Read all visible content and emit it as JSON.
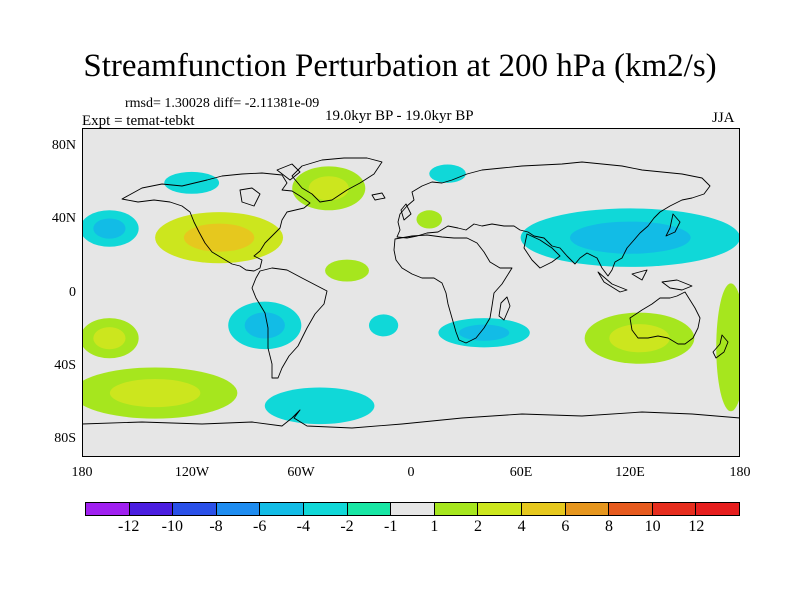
{
  "title": "Streamfunction Perturbation at 200 hPa (km2/s)",
  "stats": "rmsd= 1.30028 diff= -2.11381e-09",
  "experiment": "Expt = temat-tebkt",
  "period": "19.0kyr BP - 19.0kyr BP",
  "season": "JJA",
  "map": {
    "lat_labels": [
      "80N",
      "40N",
      "0",
      "40S",
      "80S"
    ],
    "lon_labels": [
      "180",
      "120W",
      "60W",
      "0",
      "60E",
      "120E",
      "180"
    ],
    "lat_range": [
      -90,
      90
    ],
    "lon_range": [
      -180,
      180
    ],
    "background_color": "#e6e6e6",
    "coastline_color": "#000000"
  },
  "colorbar": {
    "labels": [
      "-12",
      "-10",
      "-8",
      "-6",
      "-4",
      "-2",
      "-1",
      "1",
      "2",
      "4",
      "6",
      "8",
      "10",
      "12"
    ],
    "colors": [
      "#a020f0",
      "#4b1ee0",
      "#2a50e8",
      "#1e8cf0",
      "#12bce6",
      "#10d8d8",
      "#18e6a4",
      "#e6e6e6",
      "#a6e61e",
      "#cce61e",
      "#e6c81e",
      "#e6961e",
      "#e65a1e",
      "#e62d1e",
      "#e61e1e"
    ]
  },
  "chart_data": {
    "type": "contour-map",
    "title": "Streamfunction Perturbation at 200 hPa (km2/s)",
    "variable": "streamfunction perturbation",
    "level_hPa": 200,
    "units": "km2/s",
    "season": "JJA",
    "rmsd": 1.30028,
    "diff": -2.11381e-09,
    "contour_levels": [
      -12,
      -10,
      -8,
      -6,
      -4,
      -2,
      -1,
      1,
      2,
      4,
      6,
      8,
      10,
      12
    ],
    "features": [
      {
        "region": "North America / Gulf of Mexico",
        "center_lon": -105,
        "center_lat": 30,
        "rx": 35,
        "ry": 14,
        "value": 4,
        "core_value": 6
      },
      {
        "region": "South Pacific (25S, 165W)",
        "center_lon": -165,
        "center_lat": -25,
        "rx": 16,
        "ry": 11,
        "value": 2,
        "core_value": 4
      },
      {
        "region": "Southeast Pacific",
        "center_lon": -140,
        "center_lat": -55,
        "rx": 45,
        "ry": 14,
        "value": 2,
        "core_value": 4
      },
      {
        "region": "Greenland / North Atlantic",
        "center_lon": -45,
        "center_lat": 57,
        "rx": 20,
        "ry": 12,
        "value": 2,
        "core_value": 4
      },
      {
        "region": "Australia",
        "center_lon": 125,
        "center_lat": -25,
        "rx": 30,
        "ry": 14,
        "value": 2,
        "core_value": 4
      },
      {
        "region": "Southwest Pacific near 180",
        "center_lon": 175,
        "center_lat": -30,
        "rx": 8,
        "ry": 35,
        "value": 2
      },
      {
        "region": "Central Atlantic",
        "center_lon": -35,
        "center_lat": 12,
        "rx": 12,
        "ry": 6,
        "value": 2
      },
      {
        "region": "Mediterranean",
        "center_lon": 10,
        "center_lat": 40,
        "rx": 7,
        "ry": 5,
        "value": 2
      },
      {
        "region": "Eastern Pacific (20S, 80W)",
        "center_lon": -80,
        "center_lat": -18,
        "rx": 20,
        "ry": 13,
        "value": -2,
        "core_value": -4
      },
      {
        "region": "Northeast Pacific (35N, 165W)",
        "center_lon": -165,
        "center_lat": 35,
        "rx": 16,
        "ry": 10,
        "value": -2,
        "core_value": -4
      },
      {
        "region": "Asia / West Pacific",
        "center_lon": 120,
        "center_lat": 30,
        "rx": 60,
        "ry": 16,
        "value": -2,
        "core_value": -4
      },
      {
        "region": "Southern Indian Ocean / S. Africa",
        "center_lon": 40,
        "center_lat": -22,
        "rx": 25,
        "ry": 8,
        "value": -2,
        "core_value": -4
      },
      {
        "region": "Southern Ocean (60S, 50W)",
        "center_lon": -50,
        "center_lat": -62,
        "rx": 30,
        "ry": 10,
        "value": -2
      },
      {
        "region": "Canada",
        "center_lon": -120,
        "center_lat": 60,
        "rx": 15,
        "ry": 6,
        "value": -2
      },
      {
        "region": "Arctic / Scandinavia",
        "center_lon": 20,
        "center_lat": 65,
        "rx": 10,
        "ry": 5,
        "value": -2
      },
      {
        "region": "South Atlantic (20S, 15W)",
        "center_lon": -15,
        "center_lat": -18,
        "rx": 8,
        "ry": 6,
        "value": -2
      }
    ]
  }
}
